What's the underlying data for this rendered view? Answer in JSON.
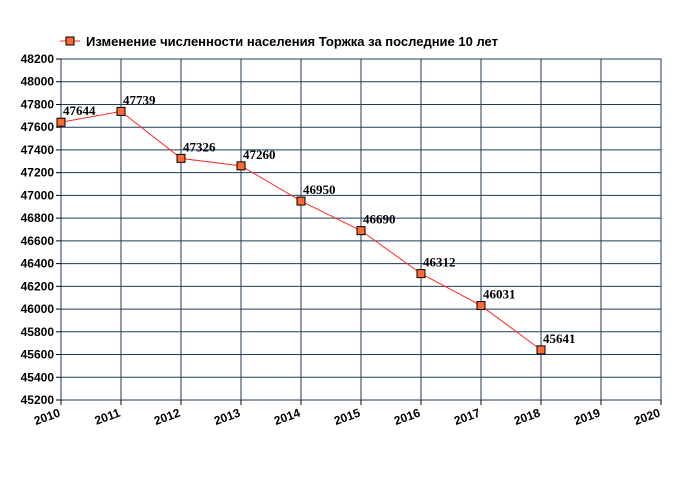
{
  "chart_data": {
    "type": "line",
    "title": "Изменение численности населения Торжка за последние 10 лет",
    "legend": {
      "position": "top-left"
    },
    "grid": true,
    "x_ticks": [
      2010,
      2011,
      2012,
      2013,
      2014,
      2015,
      2016,
      2017,
      2018,
      2019,
      2020
    ],
    "xlim": [
      2010,
      2020
    ],
    "y_ticks": [
      45200,
      45400,
      45600,
      45800,
      46000,
      46200,
      46400,
      46600,
      46800,
      47000,
      47200,
      47400,
      47600,
      47800,
      48000,
      48200
    ],
    "ylim": [
      45200,
      48200
    ],
    "series": [
      {
        "name": "Изменение численности населения Торжка за последние 10 лет",
        "x": [
          2010,
          2011,
          2012,
          2013,
          2014,
          2015,
          2016,
          2017,
          2018
        ],
        "values": [
          47644,
          47739,
          47326,
          47260,
          46950,
          46690,
          46312,
          46031,
          45641
        ],
        "labels": [
          "47644",
          "47739",
          "47326",
          "47260",
          "46950",
          "46690",
          "46312",
          "46031",
          "45641"
        ]
      }
    ],
    "colors": {
      "plot_background": "#ffffff",
      "grid": "#1f3a5a",
      "line": "#ff2a2a",
      "marker_fill": "#ff6a33",
      "marker_stroke": "#000000"
    }
  }
}
